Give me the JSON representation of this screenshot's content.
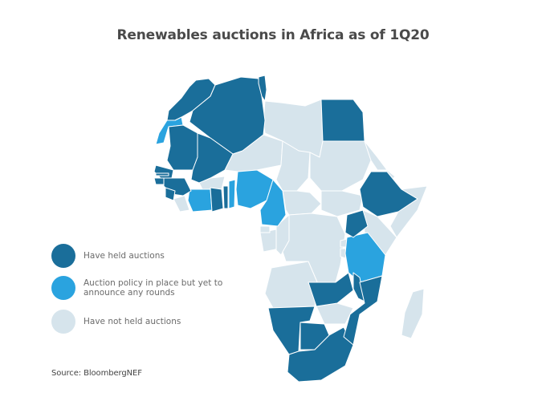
{
  "title": "Renewables auctions in Africa as of 1Q20",
  "colors": {
    "held": "#1a6e9a",
    "policy": "#2aa3df",
    "none": "#d6e4ec",
    "border": "#ffffff"
  },
  "legend": [
    {
      "key": "held",
      "label": "Have held auctions"
    },
    {
      "key": "policy",
      "label": "Auction policy in place but yet to announce any rounds"
    },
    {
      "key": "none",
      "label": "Have not held auctions"
    }
  ],
  "source": "Source: BloombergNEF",
  "regions": {
    "held": [
      "Morocco",
      "Algeria",
      "Tunisia",
      "Mauritania",
      "Mali",
      "Egypt",
      "Senegal",
      "Gambia",
      "Guinea-Bissau",
      "Guinea",
      "Sierra Leone",
      "Ghana",
      "Togo",
      "Ethiopia",
      "Uganda",
      "Zambia",
      "Malawi",
      "Namibia",
      "Botswana",
      "South Africa",
      "Mozambique"
    ],
    "policy": [
      "Western Sahara",
      "Cote d'Ivoire",
      "Benin",
      "Nigeria-Cameroon region",
      "Cameroon",
      "Tanzania"
    ],
    "none": [
      "Libya",
      "Niger",
      "Chad",
      "Sudan",
      "South Sudan",
      "Eritrea",
      "Djibouti",
      "Somalia",
      "Kenya",
      "Burkina Faso",
      "Liberia",
      "Central African Republic",
      "Gabon",
      "Congo",
      "DR Congo",
      "Rwanda",
      "Burundi",
      "Angola",
      "Zimbabwe",
      "Madagascar",
      "Lesotho",
      "Eswatini",
      "Equatorial Guinea"
    ]
  }
}
